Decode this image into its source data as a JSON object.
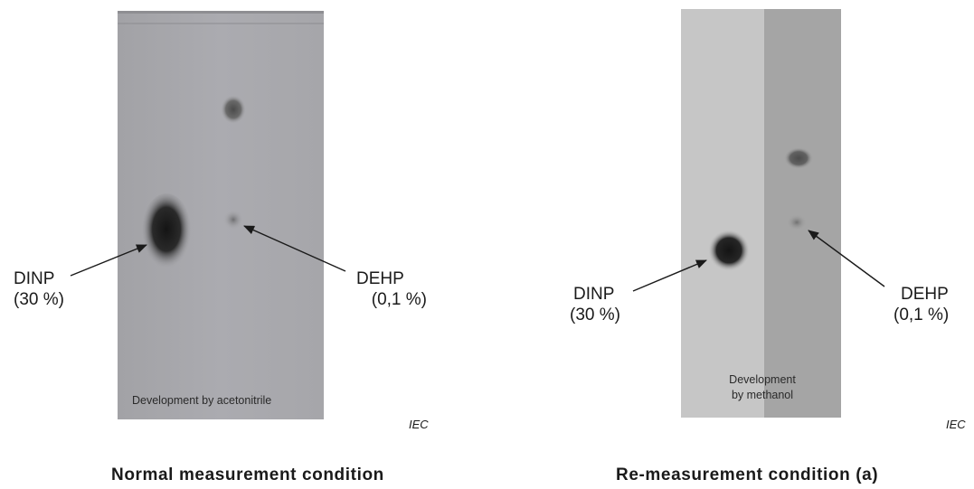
{
  "figures": [
    {
      "id": "normal",
      "caption": "Normal measurement condition",
      "plate_note": "Development by acetonitrile",
      "label_dinp": {
        "name": "DINP",
        "conc": "(30 %)"
      },
      "label_dehp": {
        "name": "DEHP",
        "conc": "(0,1 %)"
      },
      "watermark": "IEC"
    },
    {
      "id": "remeasure",
      "caption": "Re-measurement condition (a)",
      "plate_note_line1": "Development",
      "plate_note_line2": "by methanol",
      "label_dinp": {
        "name": "DINP",
        "conc": "(30 %)"
      },
      "label_dehp": {
        "name": "DEHP",
        "conc": "(0,1 %)"
      },
      "watermark": "IEC"
    }
  ],
  "colors": {
    "plate_left": "#a9a9ad",
    "plate_right_a": "#c5c5c5",
    "plate_right_b": "#a4a4a4",
    "spot": "#1c1c1c"
  }
}
